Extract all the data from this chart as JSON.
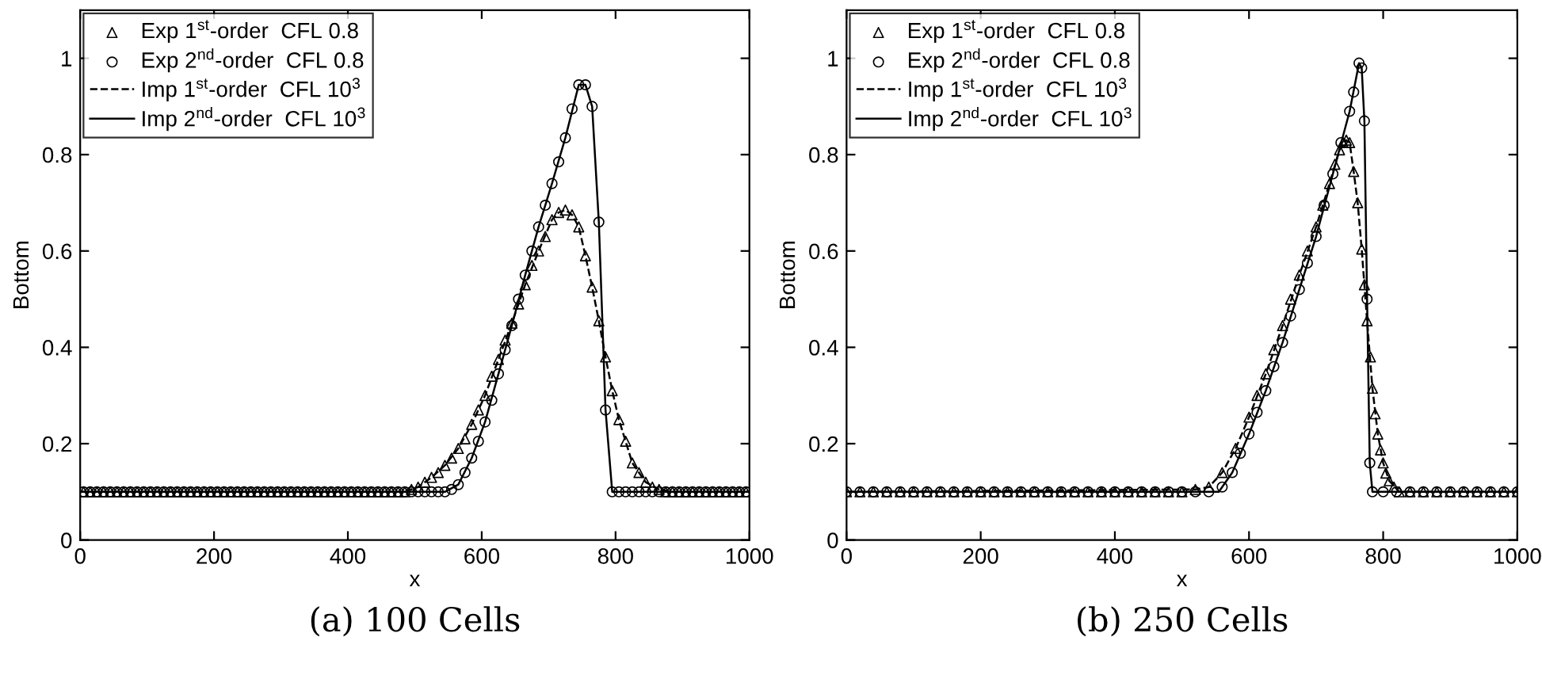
{
  "chart_data": [
    {
      "type": "line",
      "title": "(a) 100 Cells",
      "xlabel": "x",
      "ylabel": "Bottom",
      "xlim": [
        0,
        1000
      ],
      "ylim": [
        0,
        1.1
      ],
      "xticks": [
        0,
        200,
        400,
        600,
        800,
        1000
      ],
      "yticks": [
        0,
        0.2,
        0.4,
        0.6,
        0.8,
        1
      ],
      "legend": "top left",
      "grid": false,
      "series": [
        {
          "name": "Exp 1$^{st}$-order  CFL 0.8",
          "type": "scatter",
          "color": "#000000",
          "marker": "triangle",
          "x": [
            5,
            15,
            25,
            35,
            45,
            55,
            65,
            75,
            85,
            95,
            105,
            115,
            125,
            135,
            145,
            155,
            165,
            175,
            185,
            195,
            205,
            215,
            225,
            235,
            245,
            255,
            265,
            275,
            285,
            295,
            305,
            315,
            325,
            335,
            345,
            355,
            365,
            375,
            385,
            395,
            405,
            415,
            425,
            435,
            445,
            455,
            465,
            475,
            485,
            495,
            505,
            515,
            525,
            535,
            545,
            555,
            565,
            575,
            585,
            595,
            605,
            615,
            625,
            635,
            645,
            655,
            665,
            675,
            685,
            695,
            705,
            715,
            725,
            735,
            745,
            755,
            765,
            775,
            785,
            795,
            805,
            815,
            825,
            835,
            845,
            855,
            865,
            875,
            885,
            895,
            905,
            915,
            925,
            935,
            945,
            955,
            965,
            975,
            985,
            995
          ],
          "values": [
            0.1,
            0.1,
            0.1,
            0.1,
            0.1,
            0.1,
            0.1,
            0.1,
            0.1,
            0.1,
            0.1,
            0.1,
            0.1,
            0.1,
            0.1,
            0.1,
            0.1,
            0.1,
            0.1,
            0.1,
            0.1,
            0.1,
            0.1,
            0.1,
            0.1,
            0.1,
            0.1,
            0.1,
            0.1,
            0.1,
            0.1,
            0.1,
            0.1,
            0.1,
            0.1,
            0.1,
            0.1,
            0.1,
            0.1,
            0.1,
            0.1,
            0.1,
            0.1,
            0.1,
            0.1,
            0.1,
            0.1,
            0.1,
            0.1,
            0.105,
            0.11,
            0.12,
            0.13,
            0.14,
            0.155,
            0.17,
            0.19,
            0.21,
            0.24,
            0.27,
            0.3,
            0.34,
            0.375,
            0.415,
            0.45,
            0.49,
            0.53,
            0.57,
            0.6,
            0.63,
            0.665,
            0.68,
            0.685,
            0.675,
            0.65,
            0.59,
            0.525,
            0.455,
            0.38,
            0.31,
            0.25,
            0.205,
            0.16,
            0.14,
            0.12,
            0.11,
            0.105,
            0.1,
            0.1,
            0.1,
            0.1,
            0.1,
            0.1,
            0.1,
            0.1,
            0.1,
            0.1,
            0.1,
            0.1,
            0.1
          ]
        },
        {
          "name": "Exp 2$^{nd}$-order  CFL 0.8",
          "type": "scatter",
          "color": "#000000",
          "marker": "circle",
          "x": [
            5,
            15,
            25,
            35,
            45,
            55,
            65,
            75,
            85,
            95,
            105,
            115,
            125,
            135,
            145,
            155,
            165,
            175,
            185,
            195,
            205,
            215,
            225,
            235,
            245,
            255,
            265,
            275,
            285,
            295,
            305,
            315,
            325,
            335,
            345,
            355,
            365,
            375,
            385,
            395,
            405,
            415,
            425,
            435,
            445,
            455,
            465,
            475,
            485,
            495,
            505,
            515,
            525,
            535,
            545,
            555,
            565,
            575,
            585,
            595,
            605,
            615,
            625,
            635,
            645,
            655,
            665,
            675,
            685,
            695,
            705,
            715,
            725,
            735,
            745,
            755,
            765,
            775,
            785,
            795,
            805,
            815,
            825,
            835,
            845,
            855,
            865,
            875,
            885,
            895,
            905,
            915,
            925,
            935,
            945,
            955,
            965,
            975,
            985,
            995
          ],
          "values": [
            0.1,
            0.1,
            0.1,
            0.1,
            0.1,
            0.1,
            0.1,
            0.1,
            0.1,
            0.1,
            0.1,
            0.1,
            0.1,
            0.1,
            0.1,
            0.1,
            0.1,
            0.1,
            0.1,
            0.1,
            0.1,
            0.1,
            0.1,
            0.1,
            0.1,
            0.1,
            0.1,
            0.1,
            0.1,
            0.1,
            0.1,
            0.1,
            0.1,
            0.1,
            0.1,
            0.1,
            0.1,
            0.1,
            0.1,
            0.1,
            0.1,
            0.1,
            0.1,
            0.1,
            0.1,
            0.1,
            0.1,
            0.1,
            0.1,
            0.1,
            0.1,
            0.1,
            0.1,
            0.1,
            0.1,
            0.105,
            0.115,
            0.14,
            0.17,
            0.205,
            0.245,
            0.29,
            0.345,
            0.395,
            0.445,
            0.5,
            0.55,
            0.6,
            0.65,
            0.695,
            0.74,
            0.785,
            0.835,
            0.895,
            0.945,
            0.945,
            0.9,
            0.66,
            0.27,
            0.1,
            0.1,
            0.1,
            0.1,
            0.1,
            0.1,
            0.1,
            0.1,
            0.1,
            0.1,
            0.1,
            0.1,
            0.1,
            0.1,
            0.1,
            0.1,
            0.1,
            0.1,
            0.1,
            0.1,
            0.1
          ]
        },
        {
          "name": "Imp 1$^{st}$-order  CFL 10$^{3}$",
          "color": "#000000",
          "marker": "none",
          "line_style": "dashed",
          "x": [
            0,
            485,
            505,
            525,
            545,
            565,
            585,
            605,
            625,
            645,
            665,
            685,
            705,
            715,
            725,
            735,
            745,
            755,
            765,
            775,
            785,
            795,
            805,
            815,
            825,
            845,
            865,
            885,
            1000
          ],
          "values": [
            0.1,
            0.1,
            0.11,
            0.13,
            0.155,
            0.19,
            0.24,
            0.3,
            0.375,
            0.45,
            0.53,
            0.6,
            0.665,
            0.68,
            0.685,
            0.675,
            0.65,
            0.59,
            0.525,
            0.455,
            0.38,
            0.31,
            0.25,
            0.205,
            0.16,
            0.12,
            0.105,
            0.1,
            0.1
          ]
        },
        {
          "name": "Imp 2$^{nd}$-order  CFL 10$^{3}$",
          "color": "#000000",
          "marker": "none",
          "line_style": "solid",
          "x": [
            0,
            545,
            565,
            585,
            605,
            625,
            645,
            665,
            685,
            705,
            725,
            745,
            755,
            765,
            775,
            785,
            795,
            1000
          ],
          "values": [
            0.1,
            0.1,
            0.115,
            0.17,
            0.245,
            0.345,
            0.445,
            0.55,
            0.65,
            0.74,
            0.835,
            0.945,
            0.945,
            0.9,
            0.66,
            0.27,
            0.1,
            0.1
          ]
        }
      ]
    },
    {
      "type": "line",
      "title": "(b) 250 Cells",
      "xlabel": "x",
      "ylabel": "Bottom",
      "xlim": [
        0,
        1000
      ],
      "ylim": [
        0,
        1.1
      ],
      "xticks": [
        0,
        200,
        400,
        600,
        800,
        1000
      ],
      "yticks": [
        0,
        0.2,
        0.4,
        0.6,
        0.8,
        1
      ],
      "legend": "top left",
      "grid": false,
      "series": [
        {
          "name": "Exp 1$^{st}$-order  CFL 0.8",
          "type": "scatter",
          "color": "#000000",
          "marker": "triangle",
          "x": [
            0,
            20,
            40,
            60,
            80,
            100,
            120,
            140,
            160,
            180,
            200,
            220,
            240,
            260,
            280,
            300,
            320,
            340,
            360,
            380,
            400,
            420,
            440,
            460,
            480,
            500,
            520,
            540,
            560,
            580,
            600,
            612,
            625,
            637,
            650,
            662,
            675,
            687,
            700,
            710,
            720,
            728,
            735,
            740,
            745,
            750,
            756,
            762,
            768,
            772,
            776,
            781,
            784,
            788,
            792,
            796,
            800,
            804,
            809,
            816,
            824,
            840,
            860,
            880,
            900,
            920,
            940,
            960,
            980,
            1000
          ],
          "values": [
            0.1,
            0.1,
            0.1,
            0.1,
            0.1,
            0.1,
            0.1,
            0.1,
            0.1,
            0.1,
            0.1,
            0.1,
            0.1,
            0.1,
            0.1,
            0.1,
            0.1,
            0.1,
            0.1,
            0.1,
            0.1,
            0.1,
            0.1,
            0.1,
            0.1,
            0.1,
            0.105,
            0.11,
            0.14,
            0.19,
            0.255,
            0.3,
            0.345,
            0.395,
            0.445,
            0.5,
            0.55,
            0.6,
            0.65,
            0.695,
            0.74,
            0.78,
            0.81,
            0.825,
            0.83,
            0.825,
            0.765,
            0.7,
            0.604,
            0.53,
            0.455,
            0.38,
            0.315,
            0.262,
            0.22,
            0.187,
            0.16,
            0.139,
            0.123,
            0.11,
            0.1,
            0.1,
            0.1,
            0.1,
            0.1,
            0.1,
            0.1,
            0.1,
            0.1,
            0.1
          ]
        },
        {
          "name": "Exp 2$^{nd}$-order  CFL 0.8",
          "type": "scatter",
          "color": "#000000",
          "marker": "circle",
          "x": [
            0,
            20,
            40,
            60,
            80,
            100,
            120,
            140,
            160,
            180,
            200,
            220,
            240,
            260,
            280,
            300,
            320,
            340,
            360,
            380,
            400,
            420,
            440,
            460,
            480,
            500,
            520,
            540,
            560,
            575,
            587,
            600,
            612,
            625,
            637,
            650,
            662,
            675,
            687,
            700,
            712,
            725,
            737,
            750,
            756,
            764,
            768,
            772,
            776,
            780,
            784,
            800,
            820,
            840,
            860,
            880,
            900,
            920,
            940,
            960,
            980,
            1000
          ],
          "values": [
            0.1,
            0.1,
            0.1,
            0.1,
            0.1,
            0.1,
            0.1,
            0.1,
            0.1,
            0.1,
            0.1,
            0.1,
            0.1,
            0.1,
            0.1,
            0.1,
            0.1,
            0.1,
            0.1,
            0.1,
            0.1,
            0.1,
            0.1,
            0.1,
            0.1,
            0.1,
            0.1,
            0.1,
            0.11,
            0.14,
            0.18,
            0.22,
            0.265,
            0.31,
            0.36,
            0.41,
            0.465,
            0.52,
            0.575,
            0.63,
            0.695,
            0.76,
            0.825,
            0.89,
            0.93,
            0.99,
            0.98,
            0.87,
            0.5,
            0.16,
            0.1,
            0.1,
            0.1,
            0.1,
            0.1,
            0.1,
            0.1,
            0.1,
            0.1,
            0.1,
            0.1,
            0.1
          ]
        },
        {
          "name": "Imp 1$^{st}$-order  CFL 10$^{3}$",
          "color": "#000000",
          "marker": "none",
          "line_style": "dashed",
          "x": [
            0,
            520,
            540,
            560,
            580,
            600,
            625,
            650,
            675,
            700,
            720,
            735,
            745,
            750,
            756,
            762,
            768,
            776,
            784,
            792,
            800,
            809,
            824,
            1000
          ],
          "values": [
            0.1,
            0.105,
            0.11,
            0.14,
            0.19,
            0.255,
            0.345,
            0.445,
            0.55,
            0.65,
            0.74,
            0.81,
            0.83,
            0.825,
            0.765,
            0.7,
            0.604,
            0.455,
            0.315,
            0.22,
            0.16,
            0.123,
            0.1,
            0.1
          ]
        },
        {
          "name": "Imp 2$^{nd}$-order  CFL 10$^{3}$",
          "color": "#000000",
          "marker": "none",
          "line_style": "solid",
          "x": [
            0,
            555,
            575,
            600,
            625,
            650,
            675,
            700,
            725,
            750,
            764,
            768,
            772,
            776,
            780,
            784,
            1000
          ],
          "values": [
            0.1,
            0.1,
            0.14,
            0.22,
            0.31,
            0.41,
            0.52,
            0.63,
            0.76,
            0.89,
            0.99,
            0.98,
            0.87,
            0.5,
            0.16,
            0.1,
            0.1
          ]
        }
      ]
    }
  ]
}
